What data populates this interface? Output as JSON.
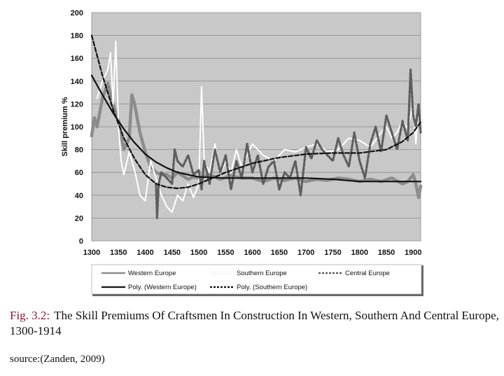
{
  "chart_data": {
    "type": "line",
    "ylabel": "Skill premium %",
    "xlabel": "",
    "xlim": [
      1300,
      1914
    ],
    "ylim": [
      0,
      200
    ],
    "x_ticks": [
      1300,
      1350,
      1400,
      1450,
      1500,
      1550,
      1600,
      1650,
      1700,
      1750,
      1800,
      1850,
      1900
    ],
    "y_ticks": [
      0,
      20,
      40,
      60,
      80,
      100,
      120,
      140,
      160,
      180,
      200
    ],
    "grid": true,
    "legend_position": "bottom",
    "series": [
      {
        "name": "Western Europe",
        "style": "solid-thick-gray",
        "color": "#8c8c8c",
        "x": [
          1300,
          1305,
          1310,
          1320,
          1330,
          1340,
          1350,
          1360,
          1370,
          1375,
          1380,
          1390,
          1400,
          1410,
          1420,
          1430,
          1440,
          1450,
          1460,
          1470,
          1480,
          1490,
          1500,
          1520,
          1540,
          1560,
          1580,
          1600,
          1620,
          1640,
          1660,
          1680,
          1700,
          1720,
          1740,
          1760,
          1780,
          1800,
          1820,
          1840,
          1860,
          1880,
          1890,
          1900,
          1905,
          1910,
          1914
        ],
        "y": [
          92,
          108,
          100,
          125,
          138,
          120,
          105,
          80,
          90,
          128,
          120,
          95,
          78,
          65,
          60,
          58,
          58,
          55,
          60,
          57,
          54,
          56,
          55,
          58,
          54,
          57,
          55,
          55,
          52,
          55,
          53,
          55,
          52,
          54,
          53,
          55,
          54,
          52,
          54,
          52,
          55,
          50,
          52,
          58,
          50,
          38,
          48
        ]
      },
      {
        "name": "Southern Europe",
        "style": "solid-white",
        "color": "#ffffff",
        "x": [
          1310,
          1320,
          1330,
          1335,
          1340,
          1345,
          1350,
          1355,
          1360,
          1370,
          1380,
          1390,
          1400,
          1410,
          1420,
          1430,
          1440,
          1450,
          1460,
          1470,
          1480,
          1490,
          1500,
          1505,
          1510,
          1520,
          1530,
          1540,
          1550,
          1560,
          1570,
          1580,
          1600,
          1620,
          1640,
          1660,
          1680,
          1700,
          1720,
          1740,
          1760,
          1780,
          1800,
          1820,
          1840,
          1850,
          1860,
          1870,
          1880,
          1890,
          1900,
          1905,
          1910,
          1914
        ],
        "y": [
          125,
          140,
          150,
          165,
          120,
          175,
          100,
          70,
          58,
          78,
          62,
          40,
          35,
          70,
          55,
          40,
          30,
          25,
          40,
          35,
          50,
          38,
          50,
          135,
          70,
          60,
          85,
          58,
          70,
          60,
          80,
          65,
          85,
          75,
          70,
          80,
          78,
          82,
          85,
          78,
          80,
          90,
          88,
          82,
          95,
          100,
          90,
          95,
          105,
          98,
          120,
          85,
          115,
          95
        ]
      },
      {
        "name": "Central Europe",
        "style": "dashed-gray",
        "color": "#606060",
        "x": [
          1420,
          1422,
          1425,
          1430,
          1440,
          1450,
          1455,
          1460,
          1470,
          1480,
          1490,
          1500,
          1505,
          1510,
          1520,
          1530,
          1540,
          1550,
          1560,
          1570,
          1580,
          1590,
          1600,
          1610,
          1620,
          1630,
          1640,
          1650,
          1660,
          1670,
          1680,
          1690,
          1700,
          1710,
          1720,
          1730,
          1740,
          1750,
          1760,
          1770,
          1780,
          1790,
          1800,
          1810,
          1820,
          1830,
          1840,
          1850,
          1860,
          1870,
          1880,
          1890,
          1895,
          1900,
          1905,
          1910,
          1914
        ],
        "y": [
          50,
          20,
          50,
          60,
          55,
          50,
          80,
          70,
          65,
          75,
          58,
          62,
          45,
          70,
          50,
          80,
          60,
          75,
          45,
          70,
          55,
          85,
          60,
          75,
          50,
          65,
          70,
          45,
          60,
          55,
          70,
          40,
          82,
          72,
          88,
          80,
          75,
          70,
          90,
          75,
          65,
          95,
          70,
          55,
          85,
          100,
          78,
          110,
          95,
          80,
          105,
          88,
          150,
          110,
          100,
          120,
          95
        ]
      },
      {
        "name": "Poly. (Western Europe)",
        "style": "solid-black",
        "color": "#111111",
        "x": [
          1300,
          1320,
          1340,
          1360,
          1380,
          1400,
          1420,
          1440,
          1460,
          1480,
          1500,
          1550,
          1600,
          1650,
          1700,
          1750,
          1800,
          1850,
          1900,
          1914
        ],
        "y": [
          145,
          128,
          112,
          98,
          86,
          76,
          69,
          64,
          60,
          58,
          56,
          55,
          55,
          55,
          55,
          54,
          52,
          52,
          52,
          52
        ]
      },
      {
        "name": "Poly. (Southern Europe)",
        "style": "dashed-black",
        "color": "#111111",
        "x": [
          1300,
          1320,
          1340,
          1360,
          1380,
          1400,
          1420,
          1440,
          1460,
          1480,
          1500,
          1550,
          1600,
          1650,
          1700,
          1750,
          1800,
          1850,
          1880,
          1900,
          1914
        ],
        "y": [
          180,
          145,
          115,
          90,
          72,
          58,
          50,
          47,
          46,
          47,
          50,
          60,
          68,
          73,
          76,
          77,
          77,
          80,
          87,
          95,
          104
        ]
      }
    ]
  },
  "caption": {
    "label": "Fig. 3.2:",
    "text": "The Skill Premiums Of Craftsmen In Construction In Western, Southern And Central Europe, 1300-1914"
  },
  "source": "source:(Zanden, 2009)"
}
